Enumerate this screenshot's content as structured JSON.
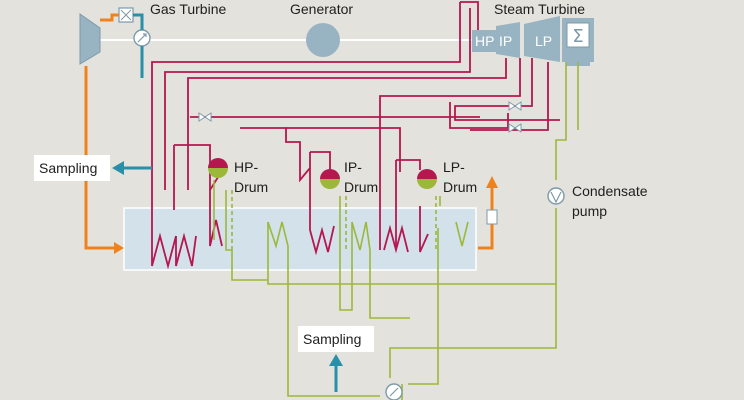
{
  "labels": {
    "gas_turbine": "Gas Turbine",
    "generator": "Generator",
    "steam_turbine": "Steam Turbine",
    "hp": "HP",
    "ip": "IP",
    "lp": "LP",
    "sampling_left": "Sampling",
    "sampling_bottom": "Sampling",
    "hp_drum_1": "HP-",
    "hp_drum_2": "Drum",
    "ip_drum_1": "IP-",
    "ip_drum_2": "Drum",
    "lp_drum_1": "LP-",
    "lp_drum_2": "Drum",
    "condensate_1": "Condensate",
    "condensate_2": "pump"
  },
  "colors": {
    "background": "#e3e2dc",
    "steam": "#b5174f",
    "water": "#9cb83a",
    "flue_gas": "#f0821e",
    "sampling": "#2a8fa8",
    "equipment": "#98b4c2",
    "hrsg": "#d3e1ea"
  }
}
